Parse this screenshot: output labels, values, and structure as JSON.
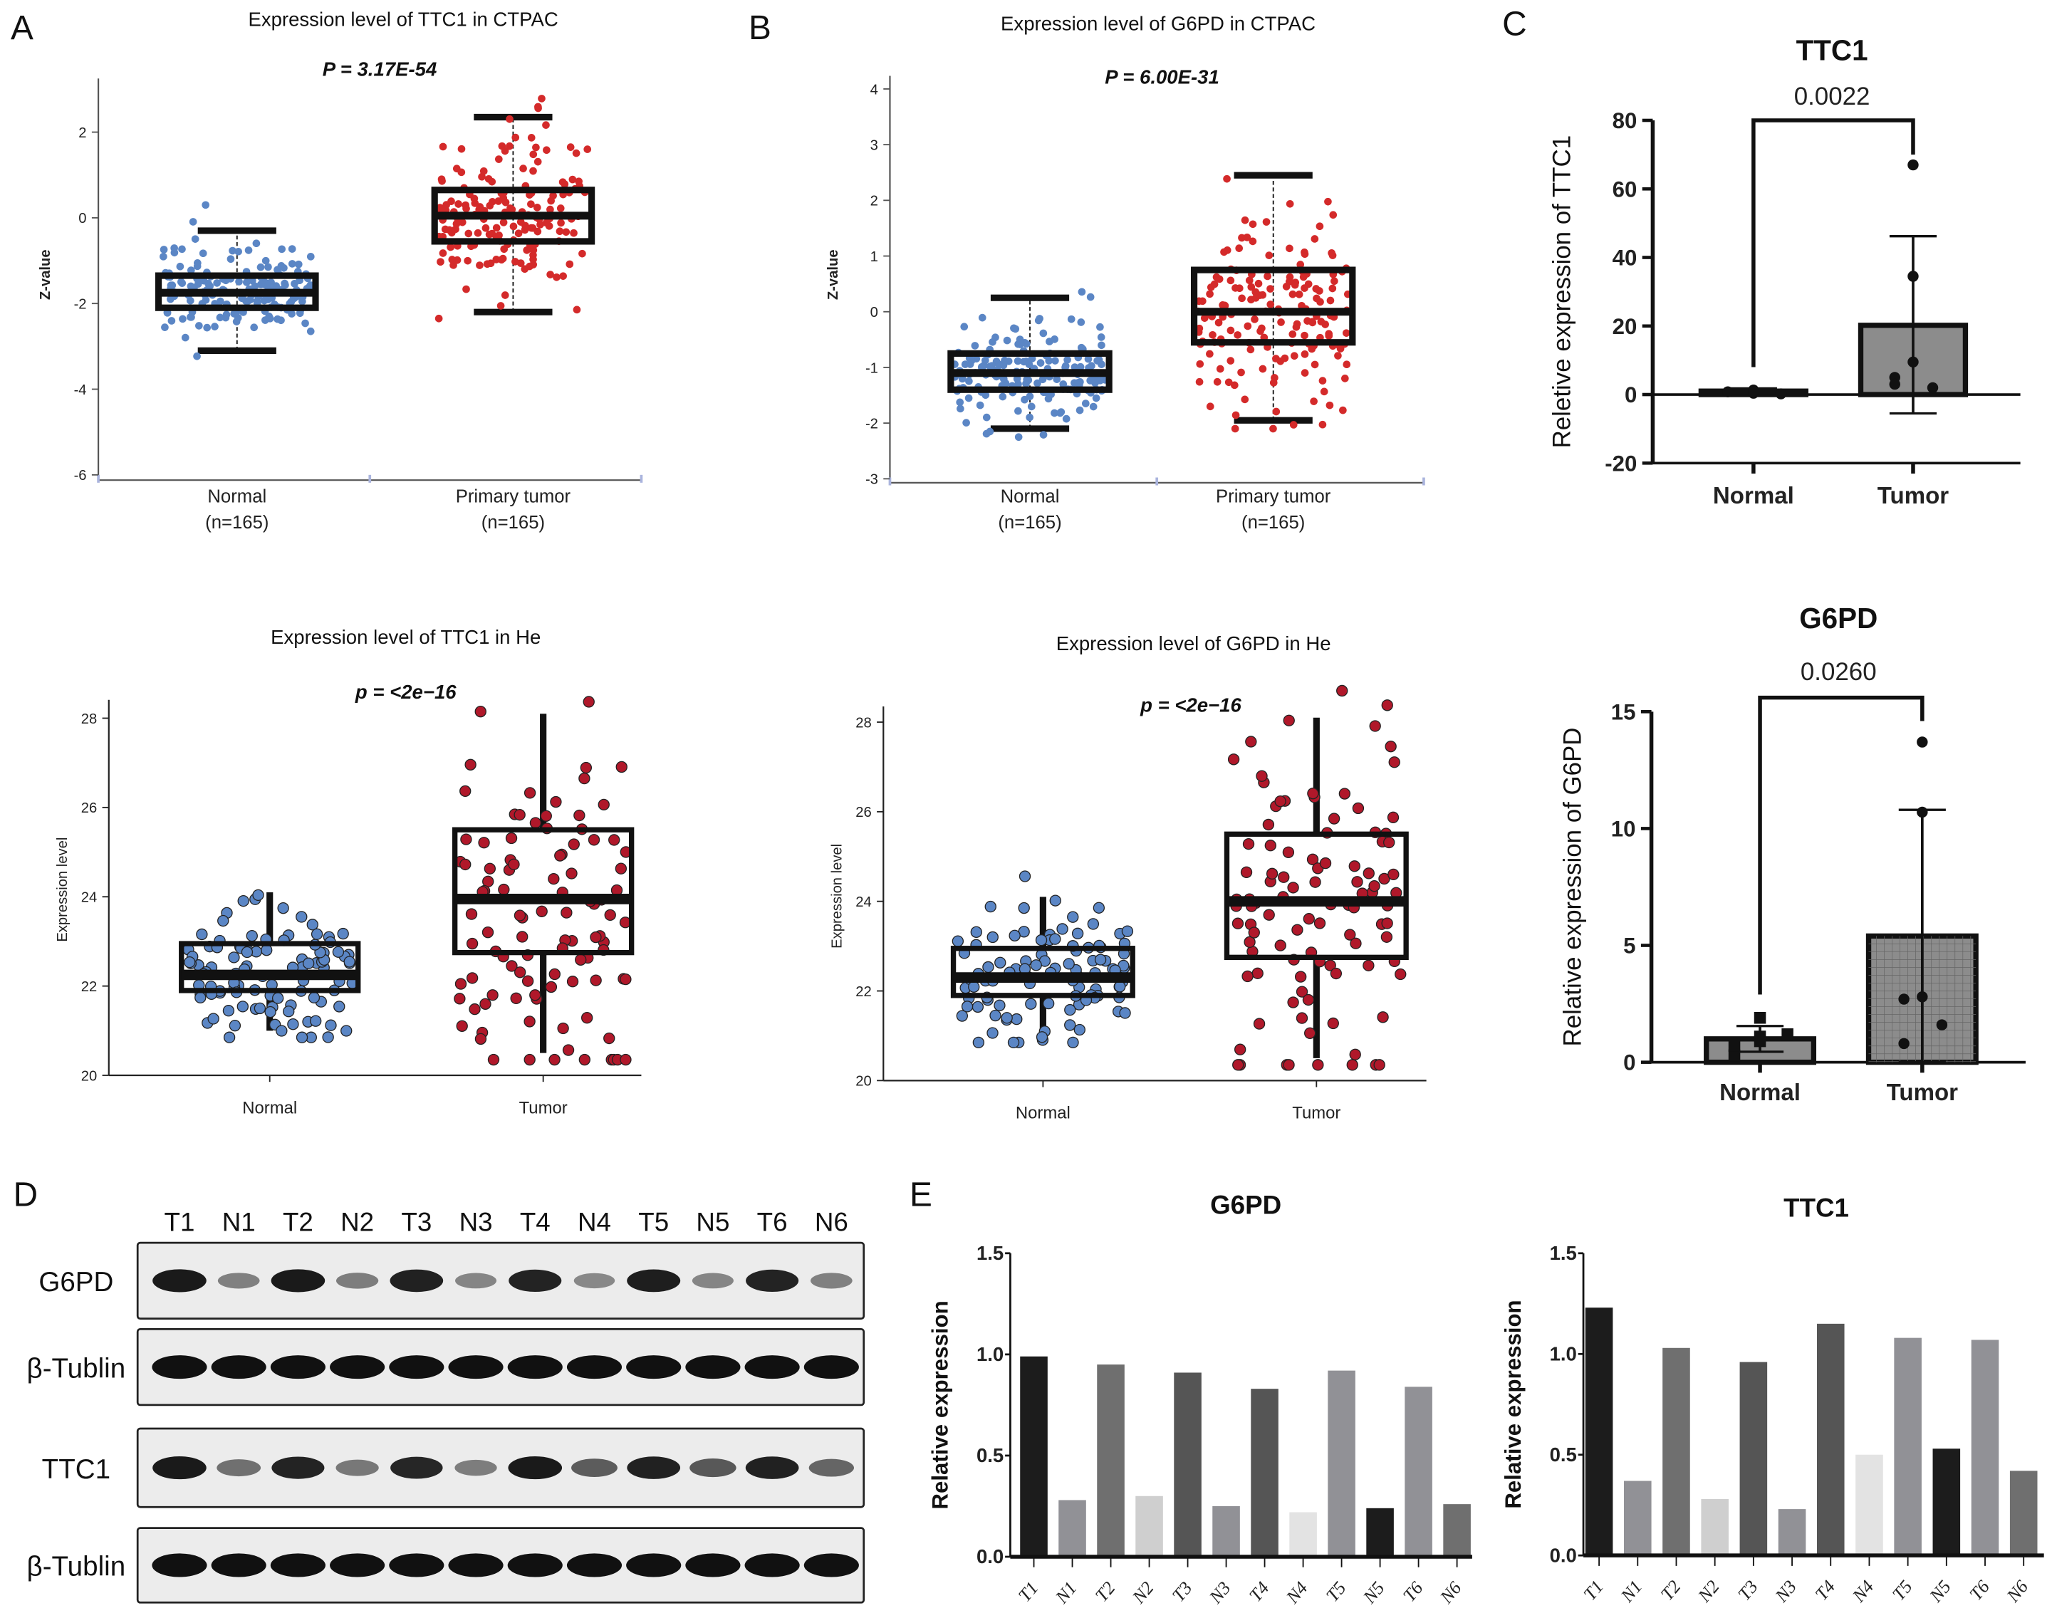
{
  "panels": {
    "A": "A",
    "B": "B",
    "C": "C",
    "D": "D",
    "E": "E"
  },
  "chart_data": [
    {
      "type": "box",
      "title": "Expression level of TTC1 in CTPAC",
      "p_label": "P = 3.17E-54",
      "ylabel": "Z-value",
      "yticks": [
        "-6",
        "-4",
        "-2",
        "0",
        "2"
      ],
      "ylim": [
        -6,
        3.3
      ],
      "groups": [
        {
          "label": "Normal",
          "sublabel": "(n=165)",
          "n": 165,
          "q1": -2.1,
          "median": -1.75,
          "q3": -1.35,
          "whisker_low": -3.1,
          "whisker_high": -0.3,
          "color": "#5b86c5"
        },
        {
          "label": "Primary tumor",
          "sublabel": "(n=165)",
          "n": 165,
          "q1": -0.55,
          "median": 0.05,
          "q3": 0.65,
          "whisker_low": -2.2,
          "whisker_high": 2.35,
          "color": "#d42a2a"
        }
      ]
    },
    {
      "type": "box",
      "title": "Expression level of G6PD in CTPAC",
      "p_label": "P = 6.00E-31",
      "ylabel": "Z-value",
      "yticks": [
        "-3",
        "-2",
        "-1",
        "0",
        "1",
        "2",
        "3",
        "4"
      ],
      "ylim": [
        -3,
        4.2
      ],
      "groups": [
        {
          "label": "Normal",
          "sublabel": "(n=165)",
          "n": 165,
          "q1": -1.4,
          "median": -1.1,
          "q3": -0.75,
          "whisker_low": -2.1,
          "whisker_high": 0.25,
          "color": "#5b86c5"
        },
        {
          "label": "Primary tumor",
          "sublabel": "(n=165)",
          "n": 165,
          "q1": -0.55,
          "median": 0.0,
          "q3": 0.75,
          "whisker_low": -1.95,
          "whisker_high": 2.45,
          "color": "#d42a2a"
        }
      ]
    },
    {
      "type": "box",
      "title": "Expression level of TTC1 in He",
      "p_label": "p = <2e−16",
      "ylabel": "Expression level",
      "yticks": [
        "20",
        "22",
        "24",
        "26",
        "28"
      ],
      "ylim": [
        20,
        28.3
      ],
      "groups": [
        {
          "label": "Normal",
          "n": 100,
          "q1": 21.9,
          "median": 22.25,
          "q3": 22.95,
          "whisker_low": 21.0,
          "whisker_high": 24.1,
          "color": "#5b86c5"
        },
        {
          "label": "Tumor",
          "n": 100,
          "q1": 22.75,
          "median": 23.95,
          "q3": 25.5,
          "whisker_low": 20.5,
          "whisker_high": 28.1,
          "color": "#b0182a"
        }
      ]
    },
    {
      "type": "box",
      "title": "Expression level of G6PD in He",
      "p_label": "p = <2e−16",
      "ylabel": "Expression level",
      "yticks": [
        "20",
        "22",
        "24",
        "26",
        "28"
      ],
      "ylim": [
        20,
        28.3
      ],
      "groups": [
        {
          "label": "Normal",
          "n": 100,
          "q1": 21.9,
          "median": 22.3,
          "q3": 22.95,
          "whisker_low": 21.0,
          "whisker_high": 24.1,
          "color": "#5b86c5"
        },
        {
          "label": "Tumor",
          "n": 100,
          "q1": 22.75,
          "median": 24.0,
          "q3": 25.5,
          "whisker_low": 20.5,
          "whisker_high": 28.1,
          "color": "#b0182a"
        }
      ]
    },
    {
      "type": "bar",
      "title": "TTC1",
      "p_value": "0.0022",
      "ylabel": "Reletive expression of TTC1",
      "yticks": [
        "-20",
        "0",
        "20",
        "40",
        "60",
        "80"
      ],
      "ylim": [
        -20,
        80
      ],
      "categories": [
        "Normal",
        "Tumor"
      ],
      "means": [
        1.0,
        20.2
      ],
      "error_low": [
        0.3,
        -5.5
      ],
      "error_high": [
        1.8,
        46.2
      ],
      "points": [
        [
          0.4,
          1.3,
          0.9,
          0.8,
          0.2
        ],
        [
          67,
          34.5,
          9.5,
          5,
          2,
          3
        ]
      ],
      "bar_colors": [
        "#8c8c8c",
        "#8c8c8c"
      ]
    },
    {
      "type": "bar",
      "title": "G6PD",
      "p_value": "0.0260",
      "ylabel": "Relative expression of G6PD",
      "yticks": [
        "0",
        "5",
        "10",
        "15"
      ],
      "ylim": [
        0,
        15
      ],
      "categories": [
        "Normal",
        "Tumor"
      ],
      "means": [
        1.0,
        5.4
      ],
      "error_low": [
        0.45,
        0
      ],
      "error_high": [
        1.55,
        10.8
      ],
      "points": [
        [
          1.9,
          1.1,
          0.9,
          0.3,
          1.2,
          0.7
        ],
        [
          13.7,
          10.7,
          2.8,
          2.7,
          1.6,
          0.8
        ]
      ],
      "bar_colors": [
        "#8c8c8c",
        "#8c8c8c"
      ]
    },
    {
      "type": "bar",
      "title": "G6PD",
      "ylabel": "Relative expression",
      "yticks": [
        "0.0",
        "0.5",
        "1.0",
        "1.5"
      ],
      "ylim": [
        0,
        1.5
      ],
      "categories": [
        "T1",
        "N1",
        "T2",
        "N2",
        "T3",
        "N3",
        "T4",
        "N4",
        "T5",
        "N5",
        "T6",
        "N6"
      ],
      "values": [
        0.99,
        0.28,
        0.95,
        0.3,
        0.91,
        0.25,
        0.83,
        0.22,
        0.92,
        0.24,
        0.84,
        0.26
      ],
      "colors": [
        "#1c1c1c",
        "#919196",
        "#6f6f6f",
        "#cfcfcf",
        "#555555",
        "#919196",
        "#555555",
        "#e3e3e3",
        "#919196",
        "#1c1c1c",
        "#919196",
        "#6f6f6f"
      ]
    },
    {
      "type": "bar",
      "title": "TTC1",
      "ylabel": "Relative expression",
      "yticks": [
        "0.0",
        "0.5",
        "1.0",
        "1.5"
      ],
      "ylim": [
        0,
        1.5
      ],
      "categories": [
        "T1",
        "N1",
        "T2",
        "N2",
        "T3",
        "N3",
        "T4",
        "N4",
        "T5",
        "N5",
        "T6",
        "N6"
      ],
      "values": [
        1.23,
        0.37,
        1.03,
        0.28,
        0.96,
        0.23,
        1.15,
        0.5,
        1.08,
        0.53,
        1.07,
        0.42
      ],
      "colors": [
        "#1c1c1c",
        "#919196",
        "#6f6f6f",
        "#cfcfcf",
        "#555555",
        "#919196",
        "#555555",
        "#e3e3e3",
        "#919196",
        "#1c1c1c",
        "#919196",
        "#6f6f6f"
      ]
    }
  ],
  "blot": {
    "lanes": [
      "T1",
      "N1",
      "T2",
      "N2",
      "T3",
      "N3",
      "T4",
      "N4",
      "T5",
      "N5",
      "T6",
      "N6"
    ],
    "rows": [
      {
        "label": "G6PD",
        "intensity": [
          0.95,
          0.4,
          0.95,
          0.42,
          0.92,
          0.38,
          0.9,
          0.36,
          0.93,
          0.38,
          0.9,
          0.4
        ]
      },
      {
        "label": "β-Tublin",
        "intensity": [
          1,
          1,
          1,
          1,
          1,
          1,
          1,
          1,
          1,
          1,
          1,
          1
        ]
      },
      {
        "label": "TTC1",
        "intensity": [
          0.95,
          0.5,
          0.9,
          0.45,
          0.88,
          0.42,
          0.95,
          0.6,
          0.92,
          0.62,
          0.92,
          0.55
        ]
      },
      {
        "label": "β-Tublin",
        "intensity": [
          1,
          1,
          1,
          1,
          1,
          1,
          1,
          1,
          1,
          1,
          1,
          1
        ]
      }
    ]
  }
}
